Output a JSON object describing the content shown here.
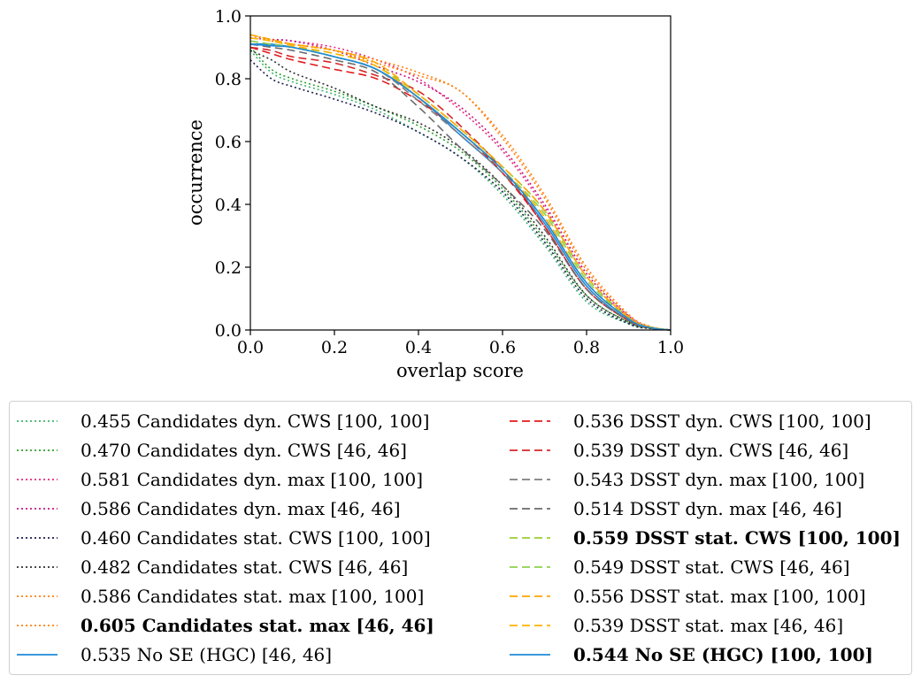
{
  "chart_data": {
    "type": "line",
    "title": "",
    "xlabel": "overlap score",
    "ylabel": "occurrence",
    "xlim": [
      0.0,
      1.0
    ],
    "ylim": [
      0.0,
      1.0
    ],
    "xticks": [
      "0.0",
      "0.2",
      "0.4",
      "0.6",
      "0.8",
      "1.0"
    ],
    "yticks": [
      "0.0",
      "0.2",
      "0.4",
      "0.6",
      "0.8",
      "1.0"
    ],
    "grid": false,
    "legend_position": "below",
    "x": [
      0.0,
      0.05,
      0.1,
      0.2,
      0.3,
      0.4,
      0.5,
      0.6,
      0.7,
      0.8,
      0.9,
      0.95,
      1.0
    ],
    "series": [
      {
        "name": "0.455 Candidates dyn. CWS [100, 100]",
        "color": "#3cb371",
        "style": "dotted",
        "bold": false,
        "values": [
          0.89,
          0.82,
          0.79,
          0.75,
          0.7,
          0.63,
          0.55,
          0.43,
          0.27,
          0.09,
          0.02,
          0.005,
          0.0
        ]
      },
      {
        "name": "0.470 Candidates dyn. CWS [46, 46]",
        "color": "#2ca02c",
        "style": "dotted",
        "bold": false,
        "values": [
          0.9,
          0.83,
          0.8,
          0.76,
          0.71,
          0.65,
          0.57,
          0.45,
          0.29,
          0.11,
          0.025,
          0.006,
          0.0
        ]
      },
      {
        "name": "0.581 Candidates dyn. max [100, 100]",
        "color": "#e8297a",
        "style": "dotted",
        "bold": false,
        "values": [
          0.93,
          0.925,
          0.92,
          0.9,
          0.86,
          0.8,
          0.7,
          0.57,
          0.39,
          0.17,
          0.04,
          0.01,
          0.0
        ]
      },
      {
        "name": "0.586 Candidates dyn. max [46, 46]",
        "color": "#c71585",
        "style": "dotted",
        "bold": false,
        "values": [
          0.93,
          0.925,
          0.92,
          0.89,
          0.84,
          0.79,
          0.71,
          0.58,
          0.4,
          0.18,
          0.045,
          0.01,
          0.0
        ]
      },
      {
        "name": "0.460 Candidates stat. CWS [100, 100]",
        "color": "#1b1b4d",
        "style": "dotted",
        "bold": false,
        "values": [
          0.86,
          0.8,
          0.775,
          0.735,
          0.69,
          0.63,
          0.55,
          0.44,
          0.28,
          0.1,
          0.02,
          0.005,
          0.0
        ]
      },
      {
        "name": "0.482 Candidates stat. CWS [46, 46]",
        "color": "#2f2f2f",
        "style": "dotted",
        "bold": false,
        "values": [
          0.89,
          0.86,
          0.82,
          0.77,
          0.71,
          0.66,
          0.58,
          0.46,
          0.3,
          0.11,
          0.025,
          0.006,
          0.0
        ]
      },
      {
        "name": "0.586 Candidates stat. max [100, 100]",
        "color": "#ff7f0e",
        "style": "dotted",
        "bold": false,
        "values": [
          0.94,
          0.92,
          0.91,
          0.89,
          0.85,
          0.81,
          0.76,
          0.61,
          0.42,
          0.19,
          0.045,
          0.01,
          0.0
        ]
      },
      {
        "name": "0.605 Candidates stat. max [46, 46]",
        "color": "#ff7f0e",
        "style": "dotted",
        "bold": true,
        "values": [
          0.94,
          0.925,
          0.91,
          0.89,
          0.86,
          0.82,
          0.76,
          0.62,
          0.43,
          0.2,
          0.05,
          0.012,
          0.0
        ]
      },
      {
        "name": "0.535 No SE (HGC) [46, 46]",
        "color": "#1f8ad8",
        "style": "solid",
        "bold": false,
        "values": [
          0.91,
          0.91,
          0.9,
          0.87,
          0.83,
          0.74,
          0.62,
          0.5,
          0.34,
          0.14,
          0.03,
          0.008,
          0.0
        ]
      },
      {
        "name": "0.536 DSST dyn. CWS [100, 100]",
        "color": "#e31a1c",
        "style": "dashed",
        "bold": false,
        "values": [
          0.9,
          0.88,
          0.86,
          0.83,
          0.8,
          0.73,
          0.63,
          0.5,
          0.33,
          0.13,
          0.03,
          0.007,
          0.0
        ]
      },
      {
        "name": "0.539 DSST dyn. CWS [46, 46]",
        "color": "#d62728",
        "style": "dashed",
        "bold": false,
        "values": [
          0.9,
          0.89,
          0.87,
          0.85,
          0.81,
          0.76,
          0.65,
          0.51,
          0.33,
          0.13,
          0.03,
          0.007,
          0.0
        ]
      },
      {
        "name": "0.543 DSST dyn. max [100, 100]",
        "color": "#7f7f7f",
        "style": "dashed",
        "bold": false,
        "values": [
          0.91,
          0.905,
          0.9,
          0.87,
          0.83,
          0.73,
          0.62,
          0.5,
          0.35,
          0.15,
          0.035,
          0.008,
          0.0
        ]
      },
      {
        "name": "0.514 DSST dyn. max [46, 46]",
        "color": "#6b6b6b",
        "style": "dashed",
        "bold": false,
        "values": [
          0.91,
          0.9,
          0.89,
          0.86,
          0.82,
          0.71,
          0.58,
          0.46,
          0.32,
          0.13,
          0.03,
          0.007,
          0.0
        ]
      },
      {
        "name": "0.559 DSST stat. CWS [100, 100]",
        "color": "#9acd32",
        "style": "dashed",
        "bold": true,
        "values": [
          0.92,
          0.91,
          0.9,
          0.88,
          0.84,
          0.75,
          0.64,
          0.52,
          0.38,
          0.17,
          0.04,
          0.01,
          0.0
        ]
      },
      {
        "name": "0.549 DSST stat. CWS [46, 46]",
        "color": "#8fd14f",
        "style": "dashed",
        "bold": false,
        "values": [
          0.92,
          0.91,
          0.9,
          0.87,
          0.83,
          0.74,
          0.63,
          0.51,
          0.37,
          0.16,
          0.038,
          0.009,
          0.0
        ]
      },
      {
        "name": "0.556 DSST stat. max [100, 100]",
        "color": "#ffa500",
        "style": "dashed",
        "bold": false,
        "values": [
          0.94,
          0.925,
          0.91,
          0.89,
          0.85,
          0.75,
          0.64,
          0.52,
          0.38,
          0.17,
          0.04,
          0.01,
          0.0
        ]
      },
      {
        "name": "0.539 DSST stat. max [46, 46]",
        "color": "#ffb300",
        "style": "dashed",
        "bold": false,
        "values": [
          0.93,
          0.92,
          0.905,
          0.88,
          0.84,
          0.74,
          0.63,
          0.51,
          0.36,
          0.15,
          0.035,
          0.009,
          0.0
        ]
      },
      {
        "name": "0.544 No SE (HGC) [100, 100]",
        "color": "#1f8ad8",
        "style": "solid",
        "bold": true,
        "values": [
          0.91,
          0.905,
          0.9,
          0.87,
          0.83,
          0.74,
          0.63,
          0.51,
          0.35,
          0.15,
          0.035,
          0.008,
          0.0
        ]
      }
    ]
  }
}
